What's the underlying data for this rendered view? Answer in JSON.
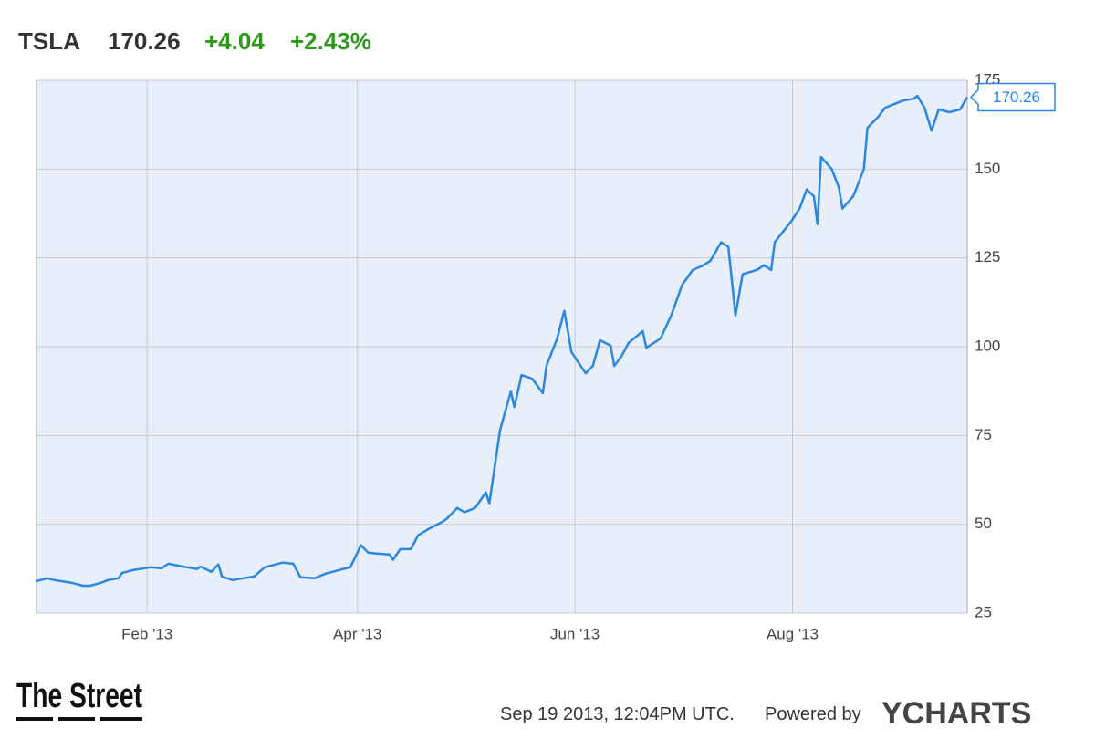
{
  "quote": {
    "ticker": "TSLA",
    "price": "170.26",
    "change": "+4.04",
    "change_percent": "+2.43%"
  },
  "footer": {
    "brand": "The Street",
    "timestamp": "Sep 19 2013, 12:04PM UTC.",
    "powered_by": "Powered by",
    "provider": "YCHARTS"
  },
  "chart_data": {
    "type": "line",
    "x": [
      1,
      4,
      6,
      11,
      14,
      16,
      19,
      21,
      24,
      25,
      28,
      30,
      33,
      36,
      38,
      42,
      46,
      47,
      50,
      52,
      53,
      56,
      59,
      62,
      65,
      70,
      73,
      75,
      79,
      82,
      87,
      89,
      92,
      94,
      96,
      100,
      101,
      103,
      106,
      108,
      111,
      115,
      116,
      119,
      121,
      124,
      127,
      128,
      131,
      134,
      135,
      137,
      140,
      143,
      144,
      147,
      149,
      150,
      151,
      155,
      157,
      159,
      162,
      163,
      165,
      167,
      171,
      172,
      176,
      179,
      182,
      185,
      188,
      190,
      193,
      195,
      197,
      199,
      203,
      205,
      207,
      208,
      211,
      213,
      215,
      217,
      219,
      220,
      221,
      224,
      226,
      227,
      230,
      231,
      233,
      234,
      237,
      239,
      244,
      247,
      248,
      250,
      252,
      254,
      257,
      260,
      262
    ],
    "series": [
      {
        "name": "TSLA",
        "color": "#2a88e0",
        "values": [
          34.0,
          34.8,
          34.3,
          33.5,
          32.7,
          32.7,
          33.5,
          34.3,
          34.8,
          36.3,
          37.1,
          37.4,
          37.9,
          37.6,
          38.9,
          38.1,
          37.4,
          38.1,
          36.6,
          38.7,
          35.3,
          34.3,
          34.8,
          35.3,
          37.9,
          39.2,
          38.9,
          35.1,
          34.8,
          36.1,
          37.4,
          37.9,
          44.1,
          42.0,
          41.8,
          41.5,
          40.0,
          43.0,
          43.0,
          46.9,
          48.7,
          50.8,
          51.5,
          54.6,
          53.4,
          54.6,
          59.0,
          55.9,
          76.5,
          87.4,
          83.0,
          92.0,
          91.0,
          86.9,
          94.6,
          102.3,
          110.1,
          104.4,
          98.5,
          92.5,
          94.6,
          101.8,
          100.3,
          94.6,
          97.2,
          101.0,
          104.4,
          99.7,
          102.3,
          108.8,
          117.3,
          121.6,
          122.9,
          124.2,
          129.4,
          128.1,
          108.8,
          120.4,
          121.6,
          122.9,
          121.6,
          129.4,
          133.2,
          135.8,
          138.9,
          144.3,
          142.3,
          134.5,
          153.4,
          150.0,
          144.8,
          138.9,
          142.3,
          144.8,
          150.0,
          161.6,
          164.7,
          167.3,
          169.3,
          169.8,
          170.6,
          167.3,
          160.8,
          166.8,
          166.0,
          166.8,
          170.26
        ]
      }
    ],
    "xlim": [
      1,
      262
    ],
    "xticks": [
      {
        "value": 32,
        "label": "Feb '13"
      },
      {
        "value": 91,
        "label": "Apr '13"
      },
      {
        "value": 152,
        "label": "Jun '13"
      },
      {
        "value": 213,
        "label": "Aug '13"
      }
    ],
    "ylim": [
      25,
      175
    ],
    "yticks": [
      25,
      50,
      75,
      100,
      125,
      150,
      175
    ],
    "grid": true
  }
}
